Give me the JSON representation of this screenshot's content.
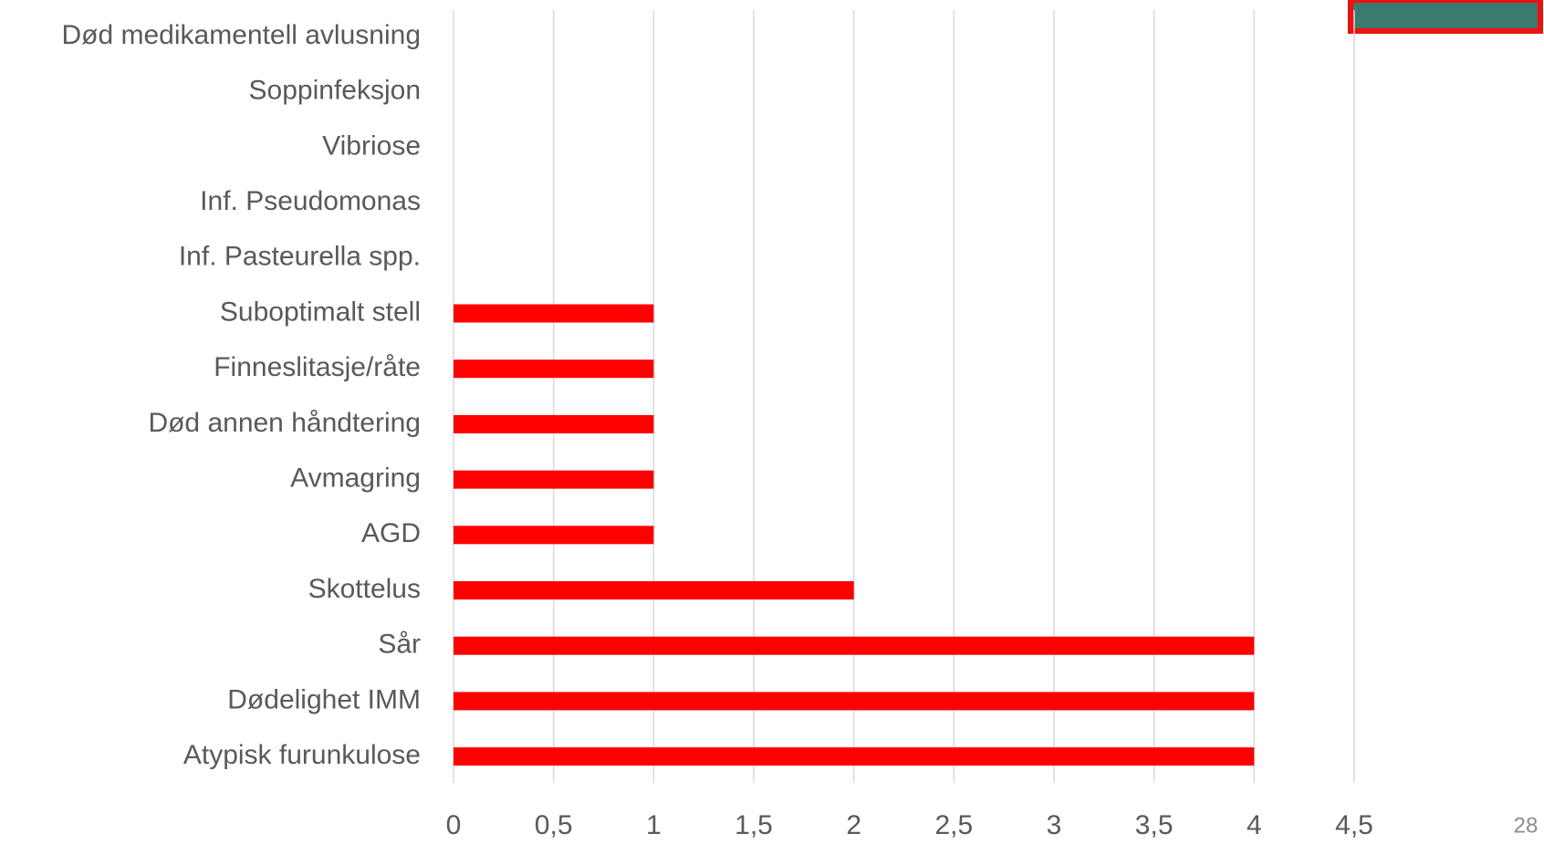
{
  "chart_data": {
    "type": "barh",
    "categories": [
      "Død medikamentell avlusning",
      "Soppinfeksjon",
      "Vibriose ",
      "Inf. Pseudomonas ",
      "Inf. Pasteurella spp.",
      "Suboptimalt stell",
      "Finneslitasje/råte",
      "Død annen håndtering",
      "Avmagring",
      "AGD",
      "Skottelus ",
      "Sår",
      "Dødelighet IMM",
      "Atypisk furunkulose"
    ],
    "values": [
      0,
      0,
      0,
      0,
      0,
      1,
      1,
      1,
      1,
      1,
      2,
      4,
      4,
      4
    ],
    "color": "#ff0000",
    "xlim": [
      0,
      4.5
    ],
    "xticks": [
      0,
      {
        "value": 0.5,
        "label": "0,5"
      },
      1,
      {
        "value": 1.5,
        "label": "1,5"
      },
      2,
      {
        "value": 2.5,
        "label": "2,5"
      },
      3,
      {
        "value": 3.5,
        "label": "3,5"
      },
      4,
      {
        "value": 4.5,
        "label": "4,5"
      }
    ],
    "grid": true
  },
  "page_number": "28"
}
